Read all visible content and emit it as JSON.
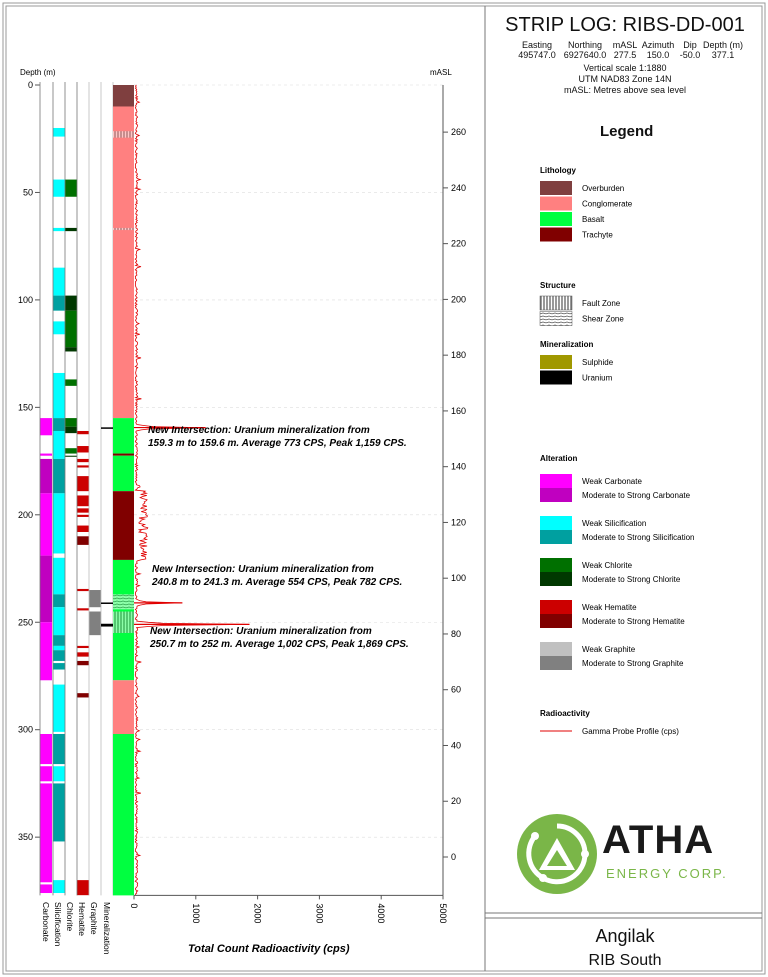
{
  "header": {
    "title": "STRIP LOG: RIBS-DD-001",
    "columns": [
      "Easting",
      "Northing",
      "mASL",
      "Azimuth",
      "Dip",
      "Depth (m)"
    ],
    "values": [
      "495747.0",
      "6927640.0",
      "277.5",
      "150.0",
      "-50.0",
      "377.1"
    ],
    "notes": [
      "Vertical scale 1:1880",
      "UTM NAD83 Zone 14N",
      "mASL: Metres above sea level"
    ]
  },
  "axes": {
    "depth_label": "Depth (m)",
    "masl_label": "mASL",
    "depth_ticks": [
      0,
      50,
      100,
      150,
      200,
      250,
      300,
      350
    ],
    "masl_ticks": [
      260,
      240,
      220,
      200,
      180,
      160,
      140,
      120,
      100,
      80,
      60,
      40,
      20,
      0
    ],
    "cps_ticks": [
      0,
      1000,
      2000,
      3000,
      4000,
      5000
    ],
    "cps_label": "Total Count Radioactivity (cps)",
    "column_labels": [
      "Carbonate",
      "Silicification",
      "Chlorite",
      "Hematite",
      "Graphite",
      "Mineralization"
    ]
  },
  "colors": {
    "overburden": "#7f3f3f",
    "conglomerate": "#ff8080",
    "basalt": "#00ff40",
    "trachyte": "#800000",
    "sulphide": "#a09800",
    "uranium": "#000000",
    "weak_carbonate": "#ff00ff",
    "strong_carbonate": "#c000c0",
    "weak_silicification": "#00ffff",
    "strong_silicification": "#00a0a0",
    "weak_chlorite": "#007000",
    "strong_chlorite": "#003800",
    "weak_hematite": "#cc0000",
    "strong_hematite": "#800000",
    "weak_graphite": "#c0c0c0",
    "strong_graphite": "#808080",
    "gamma": "#e00000",
    "logo_green": "#7ab648"
  },
  "chart_data": {
    "type": "strip-log",
    "depth_range": [
      0,
      377.1
    ],
    "cps_range": [
      0,
      5000
    ],
    "lithology": [
      {
        "from": 0,
        "to": 10,
        "unit": "overburden"
      },
      {
        "from": 10,
        "to": 155,
        "unit": "conglomerate"
      },
      {
        "from": 155,
        "to": 171.5,
        "unit": "basalt"
      },
      {
        "from": 171.5,
        "to": 172.5,
        "unit": "trachyte"
      },
      {
        "from": 172.5,
        "to": 189,
        "unit": "basalt"
      },
      {
        "from": 189,
        "to": 221,
        "unit": "trachyte"
      },
      {
        "from": 221,
        "to": 277,
        "unit": "basalt"
      },
      {
        "from": 277,
        "to": 302,
        "unit": "conglomerate"
      },
      {
        "from": 302,
        "to": 377.1,
        "unit": "basalt"
      }
    ],
    "structure": [
      {
        "from": 21.5,
        "to": 24.5,
        "type": "fault"
      },
      {
        "from": 66.5,
        "to": 67.5,
        "type": "fault"
      },
      {
        "from": 237,
        "to": 244,
        "type": "shear"
      },
      {
        "from": 245,
        "to": 255,
        "type": "fault"
      }
    ],
    "mineralization": [
      {
        "from": 159.3,
        "to": 159.6,
        "type": "uranium"
      },
      {
        "from": 240.8,
        "to": 241.3,
        "type": "uranium"
      },
      {
        "from": 250.7,
        "to": 252,
        "type": "uranium"
      }
    ],
    "carbonate": [
      {
        "from": 155,
        "to": 163,
        "i": "weak"
      },
      {
        "from": 171.5,
        "to": 172.5,
        "i": "weak"
      },
      {
        "from": 174,
        "to": 190,
        "i": "strong"
      },
      {
        "from": 190,
        "to": 219,
        "i": "weak"
      },
      {
        "from": 219,
        "to": 250,
        "i": "strong"
      },
      {
        "from": 250,
        "to": 277,
        "i": "weak"
      },
      {
        "from": 302,
        "to": 316,
        "i": "weak"
      },
      {
        "from": 317,
        "to": 324,
        "i": "weak"
      },
      {
        "from": 325,
        "to": 371,
        "i": "weak"
      },
      {
        "from": 372,
        "to": 376,
        "i": "weak"
      }
    ],
    "silicification": [
      {
        "from": 20,
        "to": 24,
        "i": "weak"
      },
      {
        "from": 44,
        "to": 52,
        "i": "weak"
      },
      {
        "from": 66.5,
        "to": 68,
        "i": "weak"
      },
      {
        "from": 85,
        "to": 98,
        "i": "weak"
      },
      {
        "from": 98,
        "to": 105,
        "i": "strong"
      },
      {
        "from": 110,
        "to": 116,
        "i": "weak"
      },
      {
        "from": 134,
        "to": 155,
        "i": "weak"
      },
      {
        "from": 155,
        "to": 161,
        "i": "strong"
      },
      {
        "from": 161,
        "to": 174,
        "i": "weak"
      },
      {
        "from": 174,
        "to": 190,
        "i": "strong"
      },
      {
        "from": 190,
        "to": 218,
        "i": "weak"
      },
      {
        "from": 220,
        "to": 237,
        "i": "weak"
      },
      {
        "from": 237,
        "to": 243,
        "i": "strong"
      },
      {
        "from": 243,
        "to": 256,
        "i": "weak"
      },
      {
        "from": 256,
        "to": 261,
        "i": "strong"
      },
      {
        "from": 261,
        "to": 263,
        "i": "weak"
      },
      {
        "from": 263,
        "to": 268,
        "i": "strong"
      },
      {
        "from": 269,
        "to": 272,
        "i": "strong"
      },
      {
        "from": 279,
        "to": 301,
        "i": "weak"
      },
      {
        "from": 302,
        "to": 316,
        "i": "strong"
      },
      {
        "from": 317,
        "to": 324,
        "i": "weak"
      },
      {
        "from": 325,
        "to": 352,
        "i": "strong"
      },
      {
        "from": 370,
        "to": 376,
        "i": "weak"
      }
    ],
    "chlorite": [
      {
        "from": 44,
        "to": 52,
        "i": "weak"
      },
      {
        "from": 66.5,
        "to": 68,
        "i": "strong"
      },
      {
        "from": 98,
        "to": 105,
        "i": "strong"
      },
      {
        "from": 105,
        "to": 122,
        "i": "weak"
      },
      {
        "from": 122,
        "to": 124,
        "i": "strong"
      },
      {
        "from": 137,
        "to": 140,
        "i": "weak"
      },
      {
        "from": 155,
        "to": 159,
        "i": "weak"
      },
      {
        "from": 159,
        "to": 162,
        "i": "strong"
      },
      {
        "from": 169,
        "to": 171.5,
        "i": "weak"
      },
      {
        "from": 172.5,
        "to": 173,
        "i": "strong"
      }
    ],
    "hematite": [
      {
        "from": 161,
        "to": 162.5,
        "i": "weak"
      },
      {
        "from": 168,
        "to": 171,
        "i": "weak"
      },
      {
        "from": 174,
        "to": 175.5,
        "i": "weak"
      },
      {
        "from": 177,
        "to": 178,
        "i": "weak"
      },
      {
        "from": 182,
        "to": 189,
        "i": "weak"
      },
      {
        "from": 191,
        "to": 196,
        "i": "weak"
      },
      {
        "from": 197,
        "to": 199,
        "i": "weak"
      },
      {
        "from": 200,
        "to": 201,
        "i": "weak"
      },
      {
        "from": 205,
        "to": 208,
        "i": "weak"
      },
      {
        "from": 210,
        "to": 214,
        "i": "strong"
      },
      {
        "from": 234.5,
        "to": 235.5,
        "i": "weak"
      },
      {
        "from": 243.5,
        "to": 244.5,
        "i": "weak"
      },
      {
        "from": 261,
        "to": 262,
        "i": "weak"
      },
      {
        "from": 264,
        "to": 266,
        "i": "weak"
      },
      {
        "from": 268,
        "to": 270,
        "i": "strong"
      },
      {
        "from": 283,
        "to": 285,
        "i": "strong"
      },
      {
        "from": 370,
        "to": 377,
        "i": "weak"
      }
    ],
    "graphite": [
      {
        "from": 235,
        "to": 243,
        "i": "strong"
      },
      {
        "from": 245,
        "to": 256,
        "i": "strong"
      }
    ],
    "gamma_peaks": [
      {
        "depth": 159.4,
        "cps": 1159
      },
      {
        "depth": 241.0,
        "cps": 782
      },
      {
        "depth": 251.0,
        "cps": 1869
      }
    ],
    "annotations": [
      {
        "depth": 159.3,
        "lines": [
          "New Intersection: Uranium mineralization from",
          "159.3 m to 159.6 m. Average 773 CPS, Peak 1,159 CPS."
        ]
      },
      {
        "depth": 240.8,
        "lines": [
          "New Intersection: Uranium mineralization from",
          "240.8 m to 241.3 m. Average 554 CPS, Peak 782 CPS."
        ]
      },
      {
        "depth": 250.7,
        "lines": [
          "New Intersection: Uranium mineralization from",
          "250.7 m to 252 m. Average 1,002 CPS, Peak 1,869 CPS."
        ]
      }
    ]
  },
  "legend": {
    "title": "Legend",
    "groups": [
      {
        "title": "Lithology",
        "items": [
          {
            "label": "Overburden",
            "color": "overburden"
          },
          {
            "label": "Conglomerate",
            "color": "conglomerate"
          },
          {
            "label": "Basalt",
            "color": "basalt"
          },
          {
            "label": "Trachyte",
            "color": "trachyte"
          }
        ]
      },
      {
        "title": "Structure",
        "items": [
          {
            "label": "Fault Zone",
            "color": "fault"
          },
          {
            "label": "Shear Zone",
            "color": "shear"
          }
        ]
      },
      {
        "title": "Mineralization",
        "items": [
          {
            "label": "Sulphide",
            "color": "sulphide"
          },
          {
            "label": "Uranium",
            "color": "uranium"
          }
        ]
      },
      {
        "title": "Alteration",
        "items": [
          {
            "label": "Weak Carbonate",
            "color": "weak_carbonate"
          },
          {
            "label": "Moderate to Strong Carbonate",
            "color": "strong_carbonate"
          },
          {
            "label": "Weak Silicification",
            "color": "weak_silicification"
          },
          {
            "label": "Moderate to Strong Silicification",
            "color": "strong_silicification"
          },
          {
            "label": "Weak Chlorite",
            "color": "weak_chlorite"
          },
          {
            "label": "Moderate to Strong Chlorite",
            "color": "strong_chlorite"
          },
          {
            "label": "Weak Hematite",
            "color": "weak_hematite"
          },
          {
            "label": "Moderate to Strong Hematite",
            "color": "strong_hematite"
          },
          {
            "label": "Weak Graphite",
            "color": "weak_graphite"
          },
          {
            "label": "Moderate to Strong Graphite",
            "color": "strong_graphite"
          }
        ]
      },
      {
        "title": "Radioactivity",
        "items": [
          {
            "label": "Gamma Probe Profile (cps)",
            "color": "gamma"
          }
        ]
      }
    ]
  },
  "logo": {
    "name": "ATHA",
    "tagline": "ENERGY CORP."
  },
  "footer": {
    "project": "Angilak",
    "area": "RIB South"
  }
}
